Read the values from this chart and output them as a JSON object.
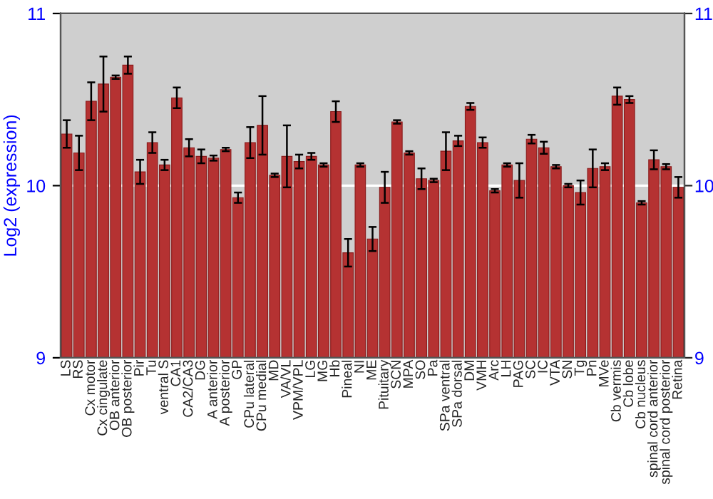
{
  "chart_data": {
    "type": "bar",
    "ylabel": "Log2 (expression)",
    "categories": [
      "LS",
      "RS",
      "Cx motor",
      "Cx cingulate",
      "OB anterior",
      "OB posterior",
      "Pir",
      "Tu",
      "ventral S",
      "CA1",
      "CA2/CA3",
      "DG",
      "A anterior",
      "A posterior",
      "GP",
      "CPu lateral",
      "CPu medial",
      "MD",
      "VA/VL",
      "VPM/VPL",
      "LG",
      "MG",
      "Hb",
      "Pineal",
      "NI",
      "ME",
      "Pituitary",
      "SCN",
      "MPA",
      "SO",
      "Pa",
      "SPa ventral",
      "SPa dorsal",
      "DM",
      "VMH",
      "Arc",
      "LH",
      "PAG",
      "SC",
      "IC",
      "VTA",
      "SN",
      "Tg",
      "Pn",
      "MVe",
      "Cb vermis",
      "Cb lobe",
      "Cb nucleus",
      "spinal cord anterior",
      "spinal cord posterior",
      "Retina"
    ],
    "values": [
      10.3,
      10.19,
      10.49,
      10.59,
      10.63,
      10.7,
      10.08,
      10.25,
      10.12,
      10.51,
      10.22,
      10.17,
      10.16,
      10.21,
      9.93,
      10.25,
      10.35,
      10.06,
      10.17,
      10.14,
      10.17,
      10.12,
      10.43,
      9.61,
      10.12,
      9.69,
      9.99,
      10.37,
      10.19,
      10.04,
      10.03,
      10.2,
      10.26,
      10.46,
      10.25,
      9.97,
      10.12,
      10.03,
      10.27,
      10.22,
      10.11,
      10.0,
      9.96,
      10.1,
      10.11,
      10.52,
      10.5,
      9.9,
      10.15,
      10.11,
      9.99
    ],
    "errors": [
      0.08,
      0.1,
      0.11,
      0.16,
      0.01,
      0.05,
      0.07,
      0.06,
      0.03,
      0.06,
      0.05,
      0.04,
      0.015,
      0.01,
      0.03,
      0.09,
      0.17,
      0.01,
      0.18,
      0.04,
      0.02,
      0.01,
      0.06,
      0.08,
      0.01,
      0.07,
      0.09,
      0.01,
      0.01,
      0.06,
      0.01,
      0.11,
      0.03,
      0.02,
      0.03,
      0.01,
      0.01,
      0.1,
      0.025,
      0.035,
      0.01,
      0.01,
      0.07,
      0.11,
      0.02,
      0.05,
      0.02,
      0.01,
      0.055,
      0.015,
      0.06
    ],
    "color": "#b53232",
    "ylim": [
      9,
      11
    ],
    "yticks": [
      9,
      10,
      11
    ],
    "y2lim": [
      9,
      11
    ],
    "y2ticks": [
      9,
      10,
      11
    ],
    "grid": "y",
    "legend": false
  }
}
